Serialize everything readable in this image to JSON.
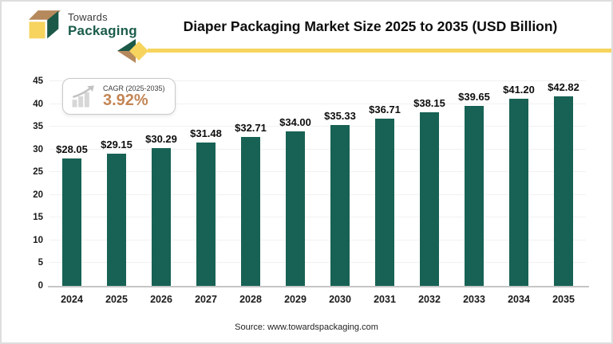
{
  "brand": {
    "top": "Towards",
    "bottom": "Packaging"
  },
  "header": {
    "title": "Diaper Packaging Market Size 2025 to 2035 (USD Billion)"
  },
  "cagr_badge": {
    "label": "CAGR (2025-2035)",
    "value": "3.92%",
    "icon": "growth-chart-icon"
  },
  "chart_data": {
    "type": "bar",
    "title": "Diaper Packaging Market Size 2025 to 2035 (USD Billion)",
    "categories": [
      "2024",
      "2025",
      "2026",
      "2027",
      "2028",
      "2029",
      "2030",
      "2031",
      "2032",
      "2033",
      "2034",
      "2035"
    ],
    "values": [
      28.05,
      29.15,
      30.29,
      31.48,
      32.71,
      34.0,
      35.33,
      36.71,
      38.15,
      39.65,
      41.2,
      42.82
    ],
    "value_labels": [
      "$28.05",
      "$29.15",
      "$30.29",
      "$31.48",
      "$32.71",
      "$34.00",
      "$35.33",
      "$36.71",
      "$38.15",
      "$39.65",
      "$41.20",
      "$42.82"
    ],
    "xlabel": "",
    "ylabel": "",
    "ylim": [
      0,
      45
    ],
    "ytick_step": 5,
    "grid": true,
    "legend": false,
    "bar_color": "#176254"
  },
  "footer": {
    "source": "Source: www.towardspackaging.com"
  },
  "colors": {
    "bar": "#176254",
    "brand_green": "#1b5c4b",
    "logo_green": "#1b5848",
    "accent_yellow": "#f6d45e",
    "tan": "#b5895c",
    "cagr_value": "#c38655"
  }
}
